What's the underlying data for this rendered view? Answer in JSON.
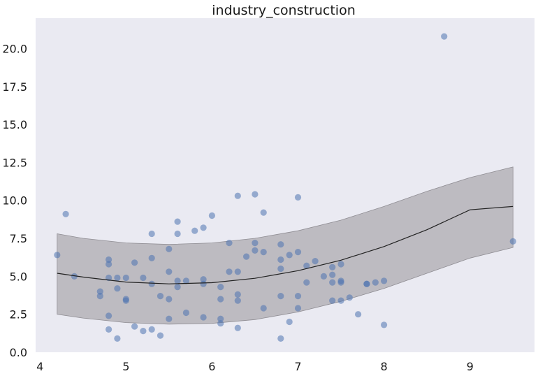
{
  "chart_data": {
    "type": "scatter",
    "title": "industry_construction",
    "xlabel": "",
    "ylabel": "",
    "xlim": [
      3.95,
      9.75
    ],
    "ylim": [
      0.0,
      22.0
    ],
    "x_ticks": [
      4,
      5,
      6,
      7,
      8,
      9
    ],
    "y_ticks": [
      0.0,
      2.5,
      5.0,
      7.5,
      10.0,
      12.5,
      15.0,
      17.5,
      20.0
    ],
    "x_tick_labels": [
      "4",
      "5",
      "6",
      "7",
      "8",
      "9"
    ],
    "y_tick_labels": [
      "0.0",
      "2.5",
      "5.0",
      "7.5",
      "10.0",
      "12.5",
      "15.0",
      "17.5",
      "20.0"
    ],
    "grid": false,
    "background": "#eaeaf2",
    "colors": {
      "points": "#4c72b0",
      "band": "#a9a7ac",
      "line": "#222222"
    },
    "points": [
      [
        4.2,
        6.4
      ],
      [
        4.3,
        9.1
      ],
      [
        4.4,
        5.0
      ],
      [
        4.7,
        4.0
      ],
      [
        4.7,
        3.7
      ],
      [
        4.8,
        6.1
      ],
      [
        4.8,
        5.8
      ],
      [
        4.8,
        4.9
      ],
      [
        4.8,
        2.4
      ],
      [
        4.8,
        1.5
      ],
      [
        4.9,
        4.9
      ],
      [
        4.9,
        4.2
      ],
      [
        4.9,
        0.9
      ],
      [
        5.0,
        4.9
      ],
      [
        5.0,
        3.5
      ],
      [
        5.0,
        3.4
      ],
      [
        5.1,
        5.9
      ],
      [
        5.1,
        1.7
      ],
      [
        5.2,
        4.9
      ],
      [
        5.2,
        1.4
      ],
      [
        5.3,
        7.8
      ],
      [
        5.3,
        6.2
      ],
      [
        5.3,
        4.5
      ],
      [
        5.3,
        1.5
      ],
      [
        5.4,
        3.7
      ],
      [
        5.4,
        1.1
      ],
      [
        5.5,
        6.8
      ],
      [
        5.5,
        5.3
      ],
      [
        5.5,
        3.5
      ],
      [
        5.5,
        2.2
      ],
      [
        5.6,
        8.6
      ],
      [
        5.6,
        7.8
      ],
      [
        5.6,
        4.7
      ],
      [
        5.6,
        4.3
      ],
      [
        5.7,
        4.7
      ],
      [
        5.7,
        2.6
      ],
      [
        5.8,
        8.0
      ],
      [
        5.9,
        8.2
      ],
      [
        5.9,
        4.8
      ],
      [
        5.9,
        4.5
      ],
      [
        5.9,
        2.3
      ],
      [
        6.0,
        9.0
      ],
      [
        6.1,
        4.3
      ],
      [
        6.1,
        3.5
      ],
      [
        6.1,
        2.2
      ],
      [
        6.1,
        1.9
      ],
      [
        6.2,
        7.2
      ],
      [
        6.2,
        5.3
      ],
      [
        6.3,
        10.3
      ],
      [
        6.3,
        5.3
      ],
      [
        6.3,
        3.8
      ],
      [
        6.3,
        3.4
      ],
      [
        6.3,
        1.6
      ],
      [
        6.4,
        6.3
      ],
      [
        6.5,
        10.4
      ],
      [
        6.5,
        7.2
      ],
      [
        6.5,
        6.7
      ],
      [
        6.6,
        9.2
      ],
      [
        6.6,
        6.6
      ],
      [
        6.6,
        2.9
      ],
      [
        6.8,
        7.1
      ],
      [
        6.8,
        6.1
      ],
      [
        6.8,
        5.5
      ],
      [
        6.8,
        3.7
      ],
      [
        6.8,
        0.9
      ],
      [
        6.9,
        6.4
      ],
      [
        6.9,
        2.0
      ],
      [
        7.0,
        10.2
      ],
      [
        7.0,
        6.6
      ],
      [
        7.0,
        3.7
      ],
      [
        7.0,
        2.9
      ],
      [
        7.1,
        5.7
      ],
      [
        7.1,
        4.6
      ],
      [
        7.2,
        6.0
      ],
      [
        7.3,
        5.0
      ],
      [
        7.4,
        5.6
      ],
      [
        7.4,
        5.1
      ],
      [
        7.4,
        4.6
      ],
      [
        7.4,
        3.4
      ],
      [
        7.5,
        5.8
      ],
      [
        7.5,
        4.7
      ],
      [
        7.5,
        4.6
      ],
      [
        7.5,
        3.4
      ],
      [
        7.6,
        3.6
      ],
      [
        7.7,
        2.5
      ],
      [
        7.8,
        4.5
      ],
      [
        7.8,
        4.5
      ],
      [
        7.9,
        4.6
      ],
      [
        8.0,
        4.7
      ],
      [
        8.0,
        1.8
      ],
      [
        8.7,
        20.8
      ],
      [
        9.5,
        7.3
      ]
    ],
    "fit_line": {
      "x": [
        4.2,
        4.5,
        5.0,
        5.5,
        6.0,
        6.5,
        7.0,
        7.5,
        8.0,
        8.5,
        9.0,
        9.5
      ],
      "y": [
        5.2,
        4.95,
        4.62,
        4.5,
        4.58,
        4.87,
        5.37,
        6.06,
        6.96,
        8.07,
        9.38,
        9.6
      ]
    },
    "band": {
      "x": [
        4.2,
        4.5,
        5.0,
        5.5,
        6.0,
        6.5,
        7.0,
        7.5,
        8.0,
        8.5,
        9.0,
        9.5
      ],
      "upper": [
        7.8,
        7.5,
        7.2,
        7.1,
        7.2,
        7.5,
        8.0,
        8.7,
        9.6,
        10.6,
        11.5,
        12.2
      ],
      "lower": [
        2.5,
        2.25,
        1.95,
        1.85,
        1.9,
        2.15,
        2.65,
        3.35,
        4.2,
        5.2,
        6.2,
        6.9
      ]
    }
  }
}
